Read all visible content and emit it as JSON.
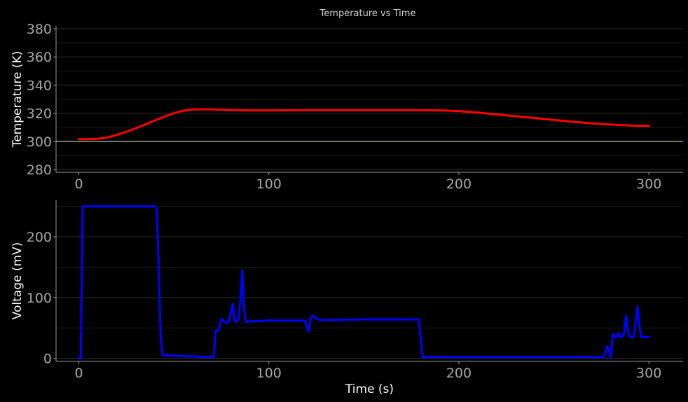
{
  "title": "Temperature vs Time",
  "chart_data": [
    {
      "type": "line",
      "ylabel": "Temperature (K)",
      "xlabel": "",
      "xlim": [
        -12,
        318
      ],
      "ylim": [
        278,
        382
      ],
      "xticks": [
        0,
        100,
        200,
        300
      ],
      "yticks": [
        280,
        300,
        320,
        340,
        360,
        380
      ],
      "grid": true,
      "reference_line": {
        "y": 300,
        "color": "#e8e8c8"
      },
      "series": [
        {
          "color": "#ff0000",
          "x": [
            0,
            5,
            10,
            15,
            20,
            25,
            30,
            35,
            40,
            45,
            50,
            55,
            60,
            65,
            70,
            75,
            80,
            85,
            90,
            100,
            120,
            150,
            180,
            190,
            200,
            210,
            220,
            230,
            240,
            250,
            260,
            270,
            280,
            290,
            300
          ],
          "y": [
            301.5,
            301.5,
            301.8,
            302.8,
            304.5,
            306.8,
            309.3,
            312,
            314.8,
            317.5,
            320,
            321.8,
            322.6,
            322.8,
            322.7,
            322.5,
            322.2,
            322.1,
            322,
            322,
            322.1,
            322.1,
            322.1,
            322,
            321.5,
            320.4,
            319.1,
            317.8,
            316.5,
            315.2,
            313.9,
            312.8,
            311.9,
            311.3,
            310.9
          ]
        }
      ]
    },
    {
      "type": "line",
      "ylabel": "Voltage (mV)",
      "xlabel": "Time (s)",
      "xlim": [
        -12,
        318
      ],
      "ylim": [
        -5,
        260
      ],
      "xticks": [
        0,
        100,
        200,
        300
      ],
      "yticks": [
        0,
        100,
        200
      ],
      "grid": true,
      "series": [
        {
          "color": "#0000ff",
          "x": [
            0,
            1,
            2,
            3,
            40,
            41,
            42,
            43,
            44,
            70,
            71,
            72,
            73,
            74,
            75,
            76,
            77,
            78,
            79,
            80,
            81,
            82,
            83,
            84,
            85,
            86,
            87,
            88,
            89,
            90,
            92,
            100,
            110,
            119,
            120,
            121,
            122,
            123,
            124,
            125,
            127,
            130,
            150,
            170,
            179,
            180,
            181,
            182,
            200,
            250,
            276,
            277,
            278,
            279,
            280,
            281,
            282,
            283,
            284,
            285,
            286,
            287,
            288,
            289,
            290,
            291,
            292,
            293,
            294,
            295,
            296,
            297,
            298,
            299,
            300
          ],
          "y": [
            0,
            0,
            250,
            250,
            250,
            245,
            150,
            40,
            5,
            2,
            2,
            45,
            45,
            50,
            65,
            62,
            60,
            58,
            60,
            75,
            90,
            62,
            60,
            65,
            95,
            145,
            80,
            60,
            60,
            61,
            61,
            62,
            62,
            62,
            52,
            44,
            67,
            70,
            68,
            66,
            63,
            63,
            64,
            64,
            64,
            30,
            2,
            2,
            2,
            2,
            2,
            8,
            20,
            15,
            0,
            40,
            35,
            36,
            42,
            35,
            35,
            42,
            70,
            45,
            35,
            35,
            35,
            60,
            85,
            55,
            35,
            35,
            35,
            35,
            35
          ]
        }
      ]
    }
  ]
}
